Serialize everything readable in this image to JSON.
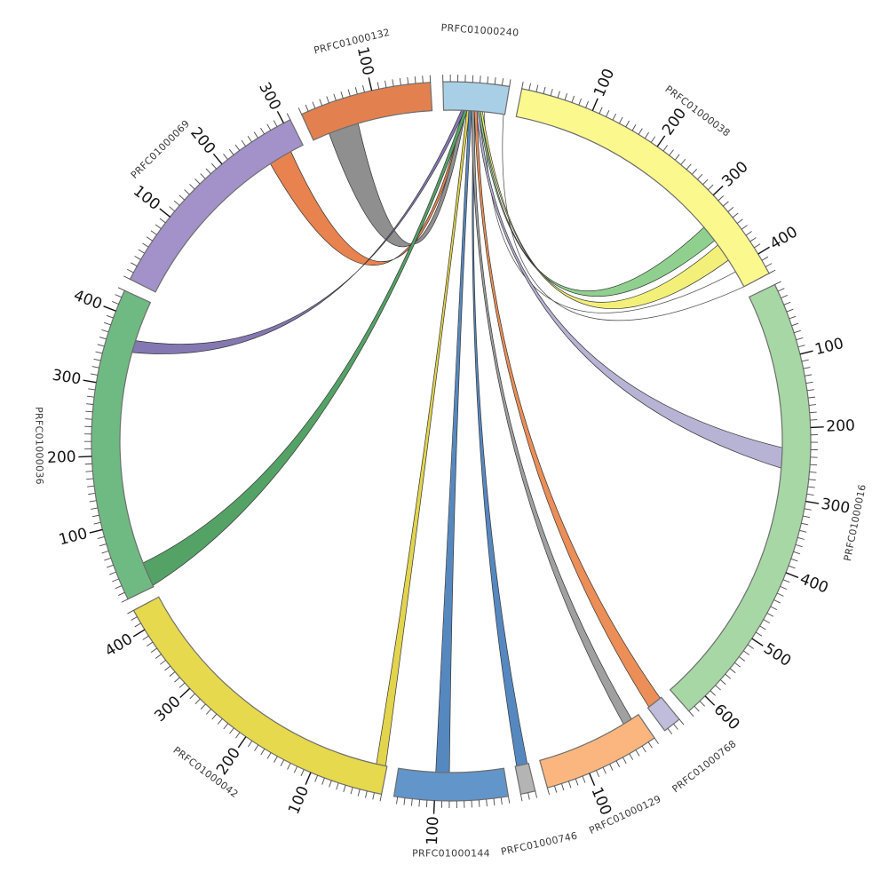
{
  "figure": {
    "background": "#ffffff",
    "description": "Circos-style circular chord diagram of contig alignments; ribbons link contig PRFC01000240 to ten other contigs"
  },
  "chart_data": {
    "type": "chord",
    "title": "",
    "legend": false,
    "layout": {
      "direction": "clockwise",
      "start_deg": -1.3,
      "gap_deg": 2.0,
      "tick_interval": 10,
      "tick_label_interval": 100
    },
    "segments": [
      {
        "id": "PRFC01000240",
        "label": "PRFC01000240",
        "length": 90,
        "color": "#a9cfe6"
      },
      {
        "id": "PRFC01000038",
        "label": "PRFC01000038",
        "length": 430,
        "color": "#fbf98d"
      },
      {
        "id": "PRFC01000016",
        "label": "PRFC01000016",
        "length": 630,
        "color": "#a6d7a4"
      },
      {
        "id": "PRFC01000768",
        "label": "PRFC01000768",
        "length": 25,
        "color": "#bfbcdc"
      },
      {
        "id": "PRFC01000129",
        "label": "PRFC01000129",
        "length": 160,
        "color": "#fbb67f"
      },
      {
        "id": "PRFC01000746",
        "label": "PRFC01000746",
        "length": 20,
        "color": "#b4b4b4"
      },
      {
        "id": "PRFC01000144",
        "label": "PRFC01000144",
        "length": 155,
        "color": "#6295c9"
      },
      {
        "id": "PRFC01000042",
        "label": "PRFC01000042",
        "length": 430,
        "color": "#e6d94d"
      },
      {
        "id": "PRFC01000036",
        "label": "PRFC01000036",
        "length": 430,
        "color": "#6fba83"
      },
      {
        "id": "PRFC01000069",
        "label": "PRFC01000069",
        "length": 310,
        "color": "#a292c9"
      },
      {
        "id": "PRFC01000132",
        "label": "PRFC01000132",
        "length": 180,
        "color": "#e2814f"
      }
    ],
    "links": [
      {
        "source": "PRFC01000240",
        "source_span": [
          60,
          88
        ],
        "target": "PRFC01000038",
        "target_span": [
          405,
          430
        ],
        "color": "#ffffff",
        "stroke": "#444444",
        "twist": true,
        "ctrl": [
          548,
          455
        ]
      },
      {
        "source": "PRFC01000240",
        "source_span": [
          29,
          33
        ],
        "target": "PRFC01000069",
        "target_span": [
          255,
          290
        ],
        "color": "#e8824f",
        "stroke": "#333333",
        "twist": true,
        "ctrl": [
          450,
          440
        ]
      },
      {
        "source": "PRFC01000240",
        "source_span": [
          27,
          33
        ],
        "target": "PRFC01000132",
        "target_span": [
          25,
          70
        ],
        "color": "#8f8f8f",
        "stroke": "#333333",
        "twist": true,
        "ctrl": [
          468,
          418
        ]
      },
      {
        "source": "PRFC01000240",
        "source_span": [
          26,
          31
        ],
        "target": "PRFC01000036",
        "target_span": [
          352,
          370
        ],
        "color": "#8478b3",
        "stroke": "#333333",
        "twist": true,
        "ctrl": [
          390,
          420
        ]
      },
      {
        "source": "PRFC01000240",
        "source_span": [
          30,
          35
        ],
        "target": "PRFC01000036",
        "target_span": [
          2,
          38
        ],
        "color": "#55a266",
        "stroke": "#333333",
        "twist": false,
        "ctrl": [
          385,
          525
        ]
      },
      {
        "source": "PRFC01000240",
        "source_span": [
          48,
          52
        ],
        "target": "PRFC01000016",
        "target_span": [
          228,
          258
        ],
        "color": "#b7b3d5",
        "stroke": "#333333",
        "twist": false,
        "ctrl": [
          565,
          428
        ]
      },
      {
        "source": "PRFC01000240",
        "source_span": [
          51,
          54
        ],
        "target": "PRFC01000038",
        "target_span": [
          325,
          350
        ],
        "color": "#8fd08f",
        "stroke": "#333333",
        "twist": false,
        "ctrl": [
          588,
          448
        ]
      },
      {
        "source": "PRFC01000240",
        "source_span": [
          54,
          57
        ],
        "target": "PRFC01000038",
        "target_span": [
          358,
          385
        ],
        "color": "#f3f07a",
        "stroke": "#333333",
        "twist": false,
        "ctrl": [
          596,
          458
        ]
      },
      {
        "source": "PRFC01000240",
        "source_span": [
          34,
          38
        ],
        "target": "PRFC01000042",
        "target_span": [
          2,
          16
        ],
        "color": "#e2d44d",
        "stroke": "#333333",
        "twist": false,
        "ctrl": [
          483,
          500
        ]
      },
      {
        "source": "PRFC01000240",
        "source_span": [
          37,
          41
        ],
        "target": "PRFC01000144",
        "target_span": [
          80,
          100
        ],
        "color": "#5688c0",
        "stroke": "#333333",
        "twist": false,
        "ctrl": [
          510,
          500
        ]
      },
      {
        "source": "PRFC01000240",
        "source_span": [
          44,
          46
        ],
        "target": "PRFC01000746",
        "target_span": [
          2,
          18
        ],
        "color": "#5688c0",
        "stroke": "#333333",
        "twist": false,
        "ctrl": [
          523,
          502
        ]
      },
      {
        "source": "PRFC01000240",
        "source_span": [
          41,
          45
        ],
        "target": "PRFC01000129",
        "target_span": [
          12,
          26
        ],
        "color": "#a0a0a0",
        "stroke": "#333333",
        "twist": false,
        "ctrl": [
          533,
          508
        ]
      },
      {
        "source": "PRFC01000240",
        "source_span": [
          45,
          49
        ],
        "target": "PRFC01000768",
        "target_span": [
          2,
          23
        ],
        "color": "#eb8e57",
        "stroke": "#333333",
        "twist": false,
        "ctrl": [
          548,
          508
        ]
      }
    ]
  }
}
